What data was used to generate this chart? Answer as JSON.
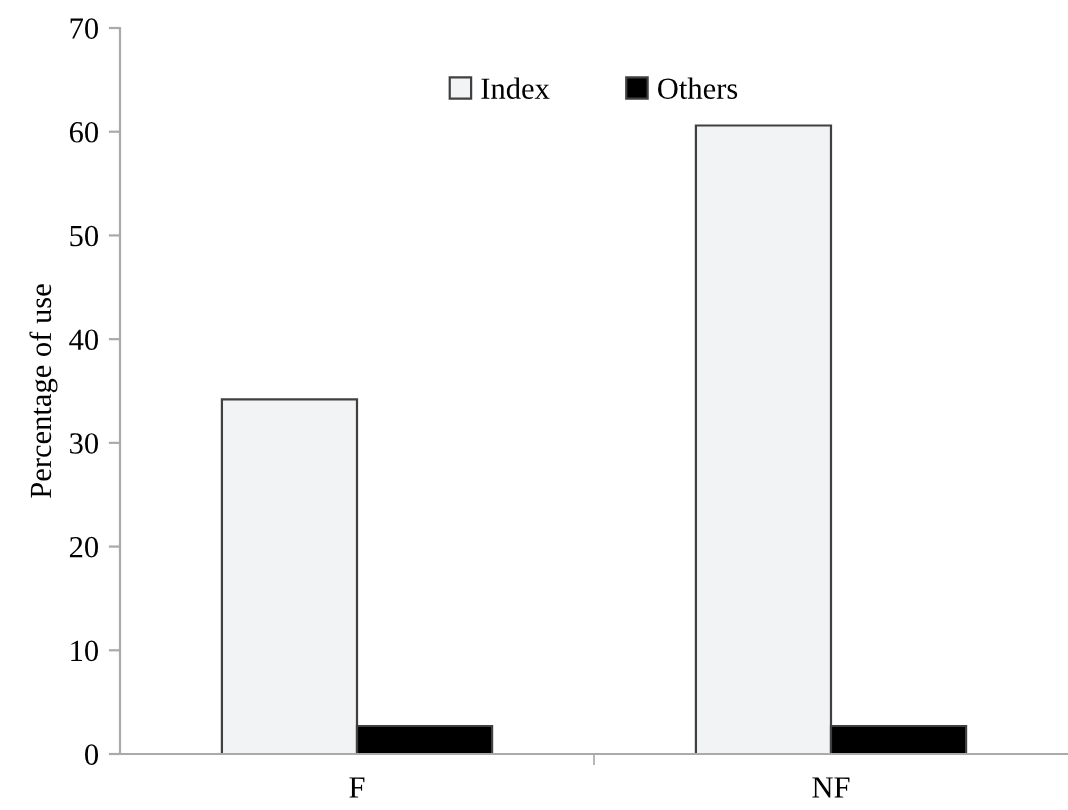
{
  "chart_data": {
    "type": "bar",
    "ylabel": "Percentage of use",
    "categories": [
      "F",
      "NF"
    ],
    "series": [
      {
        "name": "Index",
        "color": "#f2f3f5",
        "values": [
          34.2,
          60.6
        ]
      },
      {
        "name": "Others",
        "color": "#000000",
        "values": [
          2.7,
          2.7
        ]
      }
    ],
    "ylim": [
      0,
      70
    ],
    "yticks": [
      0,
      10,
      20,
      30,
      40,
      50,
      60,
      70
    ],
    "grid": false,
    "legend": "top"
  }
}
